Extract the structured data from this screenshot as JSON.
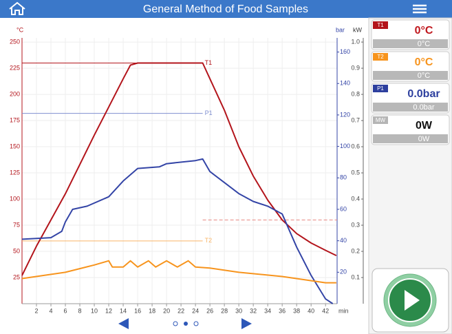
{
  "header": {
    "title": "General Method of Food Samples"
  },
  "chart_data": {
    "type": "line",
    "xlabel": "min",
    "ylabel": "°C",
    "y2label": "bar",
    "y3label": "kW",
    "xlim": [
      0,
      43.6
    ],
    "xticks": [
      2,
      4,
      6,
      8,
      10,
      12,
      14,
      16,
      18,
      20,
      22,
      24,
      26,
      28,
      30,
      32,
      34,
      36,
      38,
      40,
      42
    ],
    "ylim": [
      0,
      254
    ],
    "yticks": [
      25,
      50,
      75,
      100,
      125,
      150,
      175,
      200,
      225,
      250
    ],
    "y2lim": [
      0,
      169
    ],
    "y2ticks": [
      20,
      40,
      60,
      80,
      100,
      120,
      140,
      160
    ],
    "y3lim": [
      0,
      1.016
    ],
    "y3ticks": [
      0.1,
      0.2,
      0.3,
      0.4,
      0.5,
      0.6,
      0.7,
      0.8,
      0.9,
      {
        "value": 1,
        "label": "1.0"
      }
    ],
    "grid": true,
    "series": [
      {
        "name": "T1",
        "color": "#b3141b",
        "axis": "y",
        "x": [
          0,
          2,
          4,
          6,
          8,
          10,
          12,
          14,
          15,
          16,
          20,
          25,
          26,
          28,
          30,
          32,
          34,
          36,
          38,
          40,
          42,
          43.5
        ],
        "values": [
          27,
          55,
          80,
          105,
          133,
          161,
          188,
          215,
          228,
          230,
          230,
          230,
          215,
          185,
          150,
          122,
          99,
          80,
          67,
          58,
          51,
          46
        ]
      },
      {
        "name": "P1",
        "color": "#3344a6",
        "axis": "y2",
        "x": [
          0,
          4,
          5.5,
          6,
          7,
          9,
          12,
          14,
          16,
          19,
          20,
          24,
          25,
          26,
          28,
          30,
          32,
          34,
          36,
          38,
          40,
          42,
          43
        ],
        "values": [
          41,
          42,
          46,
          52,
          60,
          62,
          68,
          78,
          86,
          87,
          89,
          91,
          92,
          84,
          77,
          70,
          65,
          62,
          57,
          36,
          18,
          3,
          0
        ]
      },
      {
        "name": "T2",
        "color": "#f7941d",
        "axis": "y",
        "x": [
          0,
          6,
          10,
          12,
          12.5,
          14,
          15,
          16,
          17.5,
          18.5,
          20,
          21.5,
          23,
          24,
          26,
          30,
          36,
          42,
          43.5
        ],
        "values": [
          24,
          30,
          37,
          41,
          35,
          35,
          41,
          35,
          41,
          35,
          41,
          35,
          41,
          35,
          34,
          30,
          26,
          20,
          20
        ]
      }
    ],
    "setpoints": [
      {
        "label": "T1",
        "value": 230,
        "axis": "y",
        "color": "#b3141b",
        "xrange": [
          0,
          25
        ]
      },
      {
        "label": "P1",
        "value": 121,
        "axis": "y2",
        "color": "#7f8fd0",
        "xrange": [
          0,
          25
        ]
      },
      {
        "label": "T2",
        "value": 60,
        "axis": "y",
        "color": "#f9b567",
        "xrange": [
          0,
          25
        ]
      },
      {
        "value": 0.32,
        "axis": "y3",
        "color": "#e8857f",
        "dashed": true,
        "xrange": [
          25,
          43.6
        ]
      }
    ]
  },
  "sensors": [
    {
      "tag": "T1",
      "value": "0°C",
      "sub": "0°C",
      "color": "#b3141b",
      "text_color": "#c0171d"
    },
    {
      "tag": "T2",
      "value": "0°C",
      "sub": "0°C",
      "color": "#f7941d",
      "text_color": "#f7941d"
    },
    {
      "tag": "P1",
      "value": "0.0bar",
      "sub": "0.0bar",
      "color": "#2d3f9e",
      "text_color": "#2d3f9e"
    },
    {
      "tag": "MW",
      "value": "0W",
      "sub": "0W",
      "color": "#b5b5b5",
      "text_color": "#111111"
    }
  ]
}
